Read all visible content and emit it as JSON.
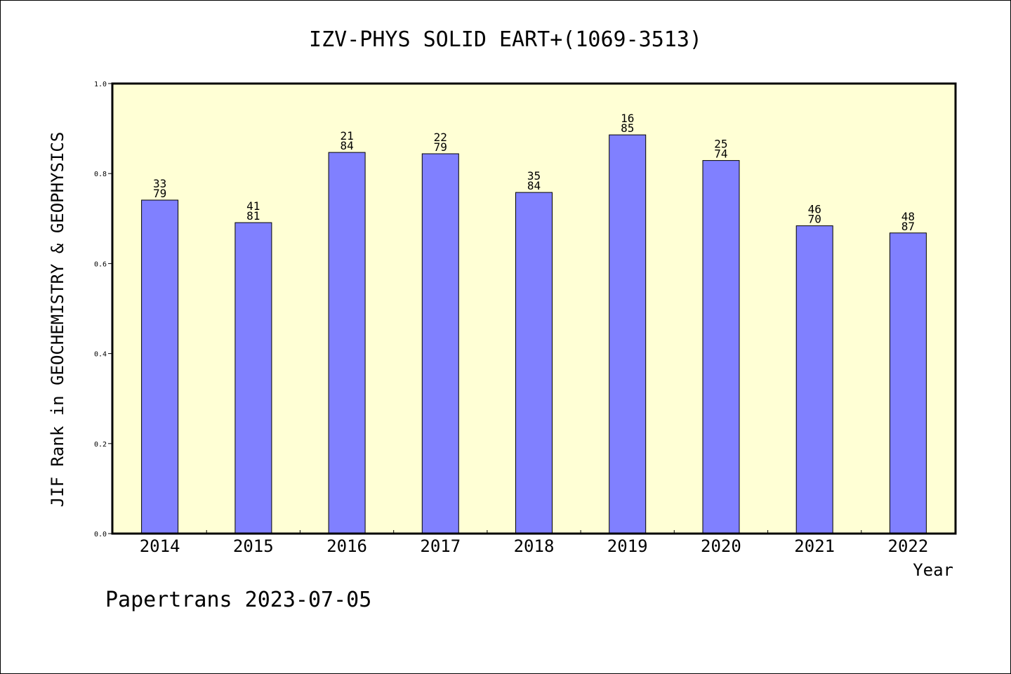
{
  "chart_data": {
    "type": "bar",
    "title": "IZV-PHYS SOLID EART+(1069-3513)",
    "xlabel": "Year",
    "ylabel": "JIF Rank in GEOCHEMISTRY & GEOPHYSICS",
    "categories": [
      "2014",
      "2015",
      "2016",
      "2017",
      "2018",
      "2019",
      "2020",
      "2021",
      "2022"
    ],
    "values": [
      0.741,
      0.691,
      0.847,
      0.844,
      0.758,
      0.886,
      0.829,
      0.684,
      0.668
    ],
    "rank_labels": [
      "33",
      "41",
      "21",
      "22",
      "35",
      "16",
      "25",
      "46",
      "48"
    ],
    "total_labels": [
      "79",
      "81",
      "84",
      "79",
      "84",
      "85",
      "74",
      "70",
      "87"
    ],
    "ylim": [
      0,
      1.0
    ],
    "yticks": [
      "0.0",
      "0.2",
      "0.4",
      "0.6",
      "0.8",
      "1.0"
    ],
    "legend": "none",
    "grid": false,
    "colors": {
      "bar_fill": "#8080ff",
      "plot_background": "#ffffd5",
      "axis": "#000000"
    }
  },
  "footer": {
    "credit": "Papertrans 2023-07-05"
  }
}
